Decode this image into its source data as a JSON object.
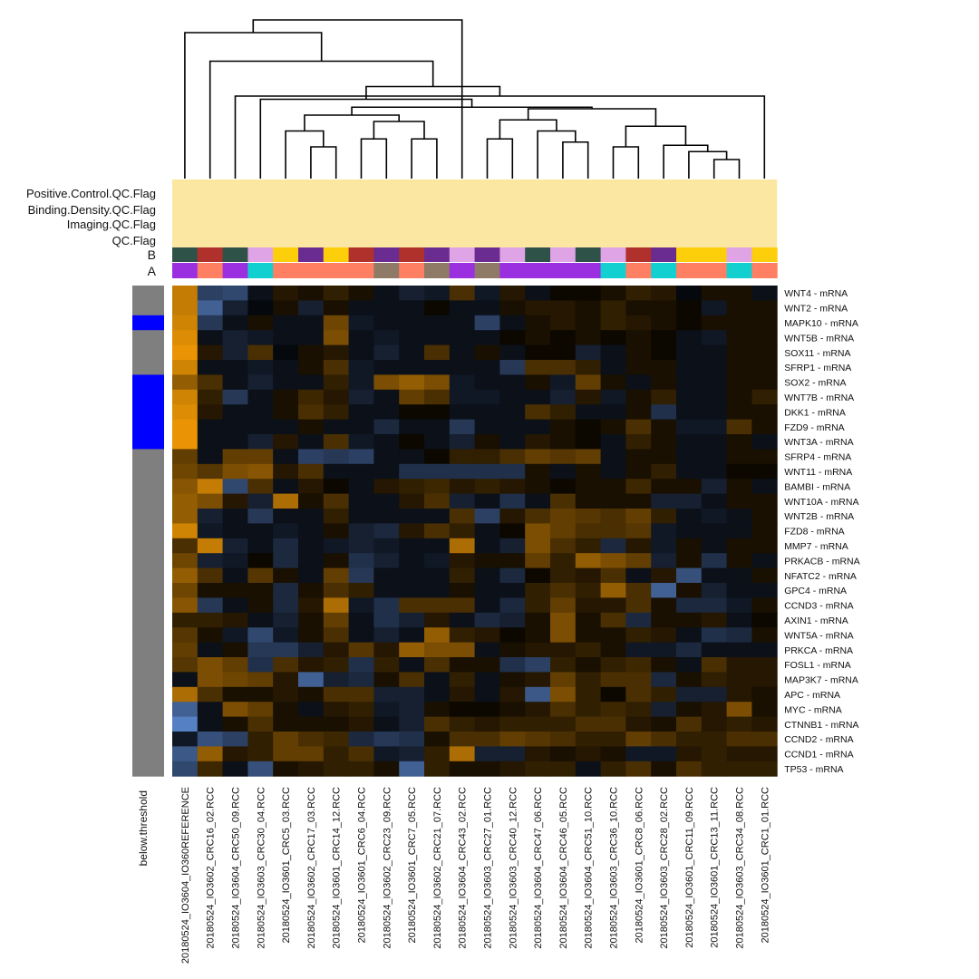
{
  "chart_data": {
    "type": "heatmap",
    "title": "",
    "annotation_tracks": [
      {
        "label": "Positive.Control.QC.Flag"
      },
      {
        "label": "Binding.Density.QC.Flag"
      },
      {
        "label": "Imaging.QC.Flag"
      },
      {
        "label": "QC.Flag"
      },
      {
        "label": "B",
        "values": [
          0,
          1,
          0,
          2,
          3,
          4,
          3,
          1,
          4,
          1,
          4,
          2,
          4,
          2,
          0,
          2,
          0,
          2,
          1,
          4,
          3,
          3,
          2,
          3
        ]
      },
      {
        "label": "A",
        "values": [
          0,
          1,
          0,
          2,
          1,
          1,
          1,
          1,
          3,
          1,
          3,
          0,
          3,
          0,
          0,
          0,
          0,
          2,
          1,
          2,
          1,
          1,
          2,
          1
        ]
      }
    ],
    "annotation_colors": {
      "qc": "#fbe7a1",
      "B": [
        "#2e5248",
        "#b0302c",
        "#dea4e6",
        "#fdce0a",
        "#6a2c91"
      ],
      "A": [
        "#9b30e0",
        "#ff7f62",
        "#12d0d0",
        "#8e7a66"
      ]
    },
    "row_annotation": {
      "label": "below.threshold",
      "values": [
        0,
        0,
        1,
        0,
        0,
        0,
        1,
        1,
        1,
        1,
        1,
        0,
        0,
        0,
        0,
        0,
        0,
        0,
        0,
        0,
        0,
        0,
        0,
        0,
        0,
        0,
        0,
        0,
        0,
        0,
        0,
        0,
        0
      ],
      "colors": [
        "#7f7f7f",
        "#0000ff"
      ]
    },
    "color_scale": {
      "low": "#6ca0f5",
      "mid": "#000000",
      "high": "#f59b05",
      "range": [
        -1,
        1
      ]
    },
    "columns": [
      "20180524_IO3604_IO360REFERENCE",
      "20180524_IO3602_CRC16_02.RCC",
      "20180524_IO3604_CRC50_09.RCC",
      "20180524_IO3603_CRC30_04.RCC",
      "20180524_IO3601_CRC5_03.RCC",
      "20180524_IO3602_CRC17_03.RCC",
      "20180524_IO3601_CRC14_12.RCC",
      "20180524_IO3601_CRC6_04.RCC",
      "20180524_IO3602_CRC23_09.RCC",
      "20180524_IO3601_CRC7_05.RCC",
      "20180524_IO3602_CRC21_07.RCC",
      "20180524_IO3604_CRC43_02.RCC",
      "20180524_IO3603_CRC27_01.RCC",
      "20180524_IO3603_CRC40_12.RCC",
      "20180524_IO3604_CRC47_06.RCC",
      "20180524_IO3604_CRC46_05.RCC",
      "20180524_IO3604_CRC51_10.RCC",
      "20180524_IO3603_CRC36_10.RCC",
      "20180524_IO3601_CRC8_06.RCC",
      "20180524_IO3603_CRC28_02.RCC",
      "20180524_IO3601_CRC11_09.RCC",
      "20180524_IO3601_CRC13_11.RCC",
      "20180524_IO3603_CRC34_08.RCC",
      "20180524_IO3601_CRC1_01.RCC"
    ],
    "rows": [
      "WNT4 - mRNA",
      "WNT2 - mRNA",
      "MAPK10 - mRNA",
      "WNT5B - mRNA",
      "SOX11 - mRNA",
      "SFRP1 - mRNA",
      "SOX2 - mRNA",
      "WNT7B - mRNA",
      "DKK1 - mRNA",
      "FZD9 - mRNA",
      "WNT3A - mRNA",
      "SFRP4 - mRNA",
      "WNT11 - mRNA",
      "BAMBI - mRNA",
      "WNT10A - mRNA",
      "WNT2B - mRNA",
      "FZD8 - mRNA",
      "MMP7 - mRNA",
      "PRKACB - mRNA",
      "NFATC2 - mRNA",
      "GPC4 - mRNA",
      "CCND3 - mRNA",
      "AXIN1 - mRNA",
      "WNT5A - mRNA",
      "PRKCA - mRNA",
      "FOSL1 - mRNA",
      "MAP3K7 - mRNA",
      "APC - mRNA",
      "MYC - mRNA",
      "CTNNB1 - mRNA",
      "CCND2 - mRNA",
      "CCND1 - mRNA",
      "TP53 - mRNA"
    ],
    "values": [
      [
        0.8,
        -0.4,
        -0.45,
        -0.1,
        0.15,
        0.1,
        0.2,
        0.1,
        -0.1,
        -0.2,
        -0.15,
        0.3,
        -0.15,
        0.15,
        -0.1,
        0.05,
        0.05,
        0.1,
        0.2,
        0.15,
        -0.05,
        0.1,
        0.1,
        -0.1
      ],
      [
        0.8,
        -0.6,
        -0.2,
        -0.05,
        0.1,
        -0.2,
        0.1,
        -0.1,
        -0.1,
        -0.1,
        0.05,
        -0.1,
        -0.1,
        0.1,
        0.15,
        0.15,
        0.1,
        0.2,
        0.1,
        0.1,
        0.05,
        -0.15,
        0.1,
        0.1
      ],
      [
        0.85,
        -0.35,
        -0.1,
        0.1,
        -0.1,
        -0.1,
        0.45,
        -0.15,
        -0.1,
        -0.1,
        -0.1,
        -0.1,
        -0.4,
        -0.1,
        0.1,
        0.15,
        0.1,
        0.2,
        0.15,
        0.1,
        0.05,
        0.1,
        0.1,
        0.1
      ],
      [
        0.9,
        -0.1,
        -0.2,
        -0.15,
        -0.1,
        -0.1,
        0.5,
        -0.1,
        -0.15,
        -0.1,
        -0.1,
        -0.1,
        -0.1,
        0.05,
        0.1,
        0.05,
        0.1,
        0.05,
        0.1,
        0.05,
        -0.1,
        -0.15,
        0.1,
        0.1
      ],
      [
        0.95,
        0.15,
        -0.2,
        0.3,
        -0.05,
        0.1,
        0.15,
        -0.1,
        -0.2,
        -0.1,
        0.3,
        -0.1,
        0.1,
        -0.1,
        0.05,
        0.05,
        -0.2,
        -0.1,
        0.1,
        0.05,
        -0.1,
        -0.1,
        0.1,
        0.1
      ],
      [
        0.85,
        -0.1,
        -0.1,
        -0.15,
        -0.1,
        0.1,
        0.3,
        -0.15,
        -0.1,
        -0.1,
        -0.1,
        -0.1,
        -0.1,
        -0.35,
        0.3,
        0.3,
        0.2,
        -0.1,
        0.1,
        0.1,
        -0.1,
        -0.1,
        0.1,
        0.1
      ],
      [
        0.6,
        0.3,
        -0.1,
        -0.2,
        -0.1,
        -0.1,
        0.2,
        -0.15,
        0.5,
        0.6,
        0.5,
        -0.15,
        -0.1,
        -0.1,
        0.1,
        -0.15,
        0.4,
        0.1,
        -0.1,
        0.1,
        -0.1,
        -0.1,
        0.1,
        0.1
      ],
      [
        0.85,
        0.2,
        -0.35,
        -0.1,
        0.1,
        0.25,
        0.15,
        -0.2,
        -0.1,
        0.4,
        0.3,
        -0.15,
        -0.15,
        -0.1,
        -0.1,
        -0.2,
        0.15,
        -0.15,
        0.1,
        0.2,
        -0.1,
        -0.1,
        0.1,
        0.2
      ],
      [
        0.9,
        0.15,
        -0.1,
        -0.1,
        0.1,
        0.3,
        0.2,
        -0.1,
        -0.1,
        0.05,
        0.05,
        -0.1,
        -0.1,
        -0.1,
        0.3,
        0.2,
        -0.1,
        -0.1,
        0.1,
        -0.3,
        -0.1,
        -0.1,
        0.1,
        0.1
      ],
      [
        0.95,
        -0.1,
        -0.1,
        -0.1,
        -0.1,
        0.1,
        -0.1,
        -0.1,
        -0.25,
        -0.1,
        -0.1,
        -0.35,
        -0.1,
        -0.1,
        -0.1,
        0.1,
        0.05,
        0.1,
        0.3,
        0.1,
        -0.15,
        -0.15,
        0.3,
        0.1
      ],
      [
        0.95,
        -0.1,
        -0.1,
        -0.2,
        0.15,
        -0.1,
        0.3,
        -0.15,
        -0.1,
        0.05,
        -0.1,
        -0.2,
        0.1,
        -0.1,
        0.15,
        0.1,
        0.05,
        -0.1,
        0.2,
        0.1,
        -0.1,
        -0.1,
        0.1,
        -0.1
      ],
      [
        0.4,
        -0.1,
        0.4,
        0.4,
        -0.1,
        -0.4,
        -0.35,
        -0.4,
        -0.1,
        -0.1,
        0.05,
        0.2,
        0.2,
        0.3,
        0.4,
        0.35,
        0.4,
        -0.1,
        0.1,
        0.1,
        -0.1,
        -0.1,
        0.1,
        0.1
      ],
      [
        0.45,
        0.35,
        0.5,
        0.55,
        0.15,
        0.3,
        -0.1,
        -0.1,
        -0.1,
        -0.3,
        -0.3,
        -0.3,
        -0.3,
        -0.3,
        0.1,
        -0.1,
        0.1,
        -0.1,
        0.1,
        0.2,
        -0.1,
        -0.1,
        0.05,
        0.05
      ],
      [
        0.55,
        0.8,
        -0.45,
        0.3,
        -0.1,
        0.15,
        0.05,
        -0.1,
        0.15,
        0.2,
        0.25,
        0.15,
        0.2,
        0.15,
        0.1,
        0.05,
        0.1,
        0.1,
        0.25,
        0.1,
        0.1,
        -0.2,
        0.1,
        -0.1
      ],
      [
        0.6,
        0.5,
        0.15,
        -0.2,
        0.7,
        0.1,
        0.3,
        -0.1,
        -0.1,
        0.15,
        0.3,
        -0.2,
        -0.1,
        -0.3,
        -0.1,
        0.3,
        0.1,
        0.1,
        0.1,
        -0.2,
        -0.2,
        -0.1,
        0.1,
        0.1
      ],
      [
        0.6,
        -0.2,
        -0.1,
        -0.35,
        -0.1,
        -0.1,
        0.2,
        -0.1,
        -0.1,
        -0.1,
        -0.1,
        0.3,
        -0.4,
        0.15,
        0.3,
        0.4,
        0.35,
        0.3,
        0.4,
        0.2,
        -0.1,
        -0.15,
        -0.1,
        0.1
      ],
      [
        0.85,
        -0.15,
        -0.1,
        -0.1,
        -0.15,
        -0.1,
        0.1,
        -0.2,
        -0.25,
        0.15,
        0.3,
        0.2,
        -0.1,
        0.05,
        0.5,
        0.4,
        0.3,
        0.3,
        0.35,
        -0.15,
        -0.1,
        -0.1,
        -0.1,
        0.1
      ],
      [
        0.3,
        0.8,
        -0.2,
        -0.1,
        -0.25,
        -0.1,
        -0.15,
        -0.2,
        -0.15,
        -0.1,
        -0.1,
        0.7,
        -0.1,
        -0.2,
        0.5,
        0.3,
        0.2,
        -0.25,
        0.15,
        -0.15,
        0.1,
        -0.1,
        0.1,
        0.1
      ],
      [
        0.45,
        -0.2,
        -0.15,
        0.05,
        -0.25,
        -0.1,
        0.1,
        -0.3,
        -0.2,
        -0.1,
        -0.15,
        0.15,
        0.1,
        0.1,
        0.4,
        0.2,
        0.6,
        0.5,
        0.4,
        -0.2,
        0.1,
        -0.3,
        0.1,
        -0.1
      ],
      [
        0.6,
        0.3,
        -0.1,
        0.35,
        0.1,
        -0.1,
        0.4,
        -0.35,
        -0.1,
        -0.1,
        -0.1,
        0.2,
        -0.1,
        -0.25,
        0.05,
        0.2,
        0.15,
        0.3,
        -0.1,
        0.15,
        -0.5,
        -0.1,
        -0.1,
        0.1
      ],
      [
        0.45,
        0.1,
        0.1,
        0.1,
        -0.25,
        0.1,
        0.3,
        0.2,
        -0.1,
        -0.1,
        -0.1,
        0.1,
        -0.1,
        -0.1,
        0.2,
        0.3,
        0.2,
        0.6,
        0.3,
        -0.6,
        0.1,
        -0.2,
        -0.1,
        -0.1
      ],
      [
        0.55,
        -0.35,
        -0.1,
        0.1,
        -0.25,
        0.15,
        0.7,
        -0.15,
        -0.3,
        0.3,
        0.3,
        0.3,
        -0.1,
        -0.25,
        0.2,
        0.4,
        0.15,
        0.15,
        0.3,
        0.1,
        -0.25,
        -0.25,
        -0.15,
        0.1
      ],
      [
        0.2,
        0.2,
        0.15,
        -0.1,
        -0.2,
        0.1,
        0.4,
        -0.1,
        -0.3,
        -0.2,
        0.15,
        -0.1,
        -0.25,
        -0.2,
        0.1,
        0.5,
        0.1,
        0.3,
        -0.25,
        0.1,
        0.1,
        0.15,
        -0.1,
        0.05
      ],
      [
        0.35,
        0.1,
        -0.15,
        -0.45,
        -0.15,
        0.1,
        0.3,
        -0.1,
        -0.2,
        -0.1,
        0.6,
        0.2,
        0.15,
        0.05,
        0.1,
        0.5,
        0.1,
        0.1,
        0.2,
        0.15,
        -0.1,
        -0.3,
        -0.25,
        0.1
      ],
      [
        0.4,
        -0.1,
        0.1,
        -0.35,
        -0.35,
        -0.2,
        0.15,
        0.35,
        0.15,
        0.6,
        0.5,
        0.5,
        -0.1,
        0.1,
        0.15,
        0.15,
        0.2,
        0.1,
        -0.15,
        -0.15,
        -0.25,
        -0.1,
        -0.1,
        -0.1
      ],
      [
        0.35,
        0.5,
        0.4,
        -0.3,
        0.3,
        0.15,
        0.2,
        -0.3,
        0.2,
        -0.1,
        0.3,
        0.1,
        0.1,
        -0.3,
        -0.4,
        0.2,
        0.1,
        0.2,
        0.25,
        0.1,
        -0.1,
        0.3,
        0.15,
        0.15
      ],
      [
        -0.1,
        0.5,
        0.45,
        0.4,
        0.15,
        -0.6,
        -0.2,
        -0.25,
        0.1,
        0.3,
        -0.1,
        0.2,
        -0.1,
        0.1,
        0.15,
        0.4,
        0.2,
        0.3,
        0.3,
        -0.25,
        0.1,
        0.2,
        0.15,
        0.15
      ],
      [
        0.7,
        0.3,
        0.1,
        0.1,
        0.15,
        0.1,
        0.3,
        0.3,
        -0.2,
        -0.2,
        -0.1,
        0.15,
        -0.1,
        0.15,
        -0.55,
        0.5,
        0.2,
        0.05,
        0.3,
        0.2,
        -0.2,
        -0.2,
        0.15,
        0.1
      ],
      [
        -0.6,
        -0.1,
        0.5,
        0.4,
        0.1,
        -0.1,
        0.15,
        0.2,
        -0.15,
        -0.2,
        0.1,
        0.05,
        0.05,
        0.1,
        0.15,
        0.3,
        0.2,
        0.25,
        0.2,
        -0.2,
        0.1,
        0.15,
        0.5,
        0.1
      ],
      [
        -0.8,
        -0.1,
        0.1,
        0.3,
        0.1,
        0.1,
        0.1,
        0.15,
        -0.1,
        -0.2,
        0.3,
        0.2,
        0.15,
        0.2,
        0.2,
        0.2,
        0.3,
        0.3,
        0.15,
        0.1,
        0.3,
        0.15,
        0.2,
        0.15
      ],
      [
        -0.15,
        -0.5,
        -0.4,
        0.2,
        0.4,
        0.3,
        0.25,
        -0.25,
        -0.35,
        -0.3,
        0.1,
        0.3,
        0.3,
        0.4,
        0.35,
        0.3,
        0.2,
        0.2,
        0.4,
        0.3,
        0.2,
        0.2,
        0.3,
        0.3
      ],
      [
        -0.55,
        0.6,
        0.15,
        0.2,
        0.4,
        0.4,
        0.2,
        0.3,
        -0.15,
        -0.2,
        0.2,
        0.7,
        -0.2,
        -0.2,
        0.15,
        0.1,
        0.15,
        0.1,
        -0.15,
        -0.15,
        0.15,
        0.2,
        0.15,
        0.15
      ],
      [
        -0.45,
        0.25,
        -0.1,
        -0.5,
        0.1,
        0.15,
        0.2,
        0.2,
        0.1,
        -0.6,
        0.2,
        0.1,
        0.1,
        0.15,
        0.2,
        0.2,
        -0.1,
        0.2,
        0.3,
        0.1,
        0.3,
        0.2,
        0.2,
        0.2
      ]
    ],
    "dendrogram": {
      "merges": [
        [
          -22,
          -23
        ],
        [
          -21,
          1
        ],
        [
          -20,
          2
        ],
        [
          -18,
          -19
        ],
        [
          3,
          4
        ],
        [
          -6,
          -7
        ],
        [
          -5,
          6
        ],
        [
          -10,
          -11
        ],
        [
          -8,
          -9
        ],
        [
          -16,
          -17
        ],
        [
          -15,
          10
        ],
        [
          -13,
          -14
        ],
        [
          11,
          12
        ],
        [
          5,
          13
        ],
        [
          8,
          9
        ],
        [
          7,
          15
        ],
        [
          14,
          16
        ],
        [
          -4,
          17
        ],
        [
          -3,
          -24
        ],
        [
          18,
          19
        ],
        [
          -2,
          20
        ],
        [
          -1,
          21
        ],
        [
          -12,
          22
        ]
      ],
      "order": [
        12,
        1,
        2,
        3,
        24,
        4,
        5,
        6,
        7,
        8,
        9,
        10,
        11,
        13,
        14,
        15,
        16,
        17,
        18,
        19,
        20,
        21,
        22,
        23
      ],
      "heights": [
        0.12,
        0.17,
        0.21,
        0.2,
        0.33,
        0.2,
        0.3,
        0.25,
        0.25,
        0.23,
        0.3,
        0.25,
        0.37,
        0.44,
        0.36,
        0.4,
        0.45,
        0.5,
        0.52,
        0.58,
        0.74,
        0.92,
        1.0
      ]
    }
  }
}
